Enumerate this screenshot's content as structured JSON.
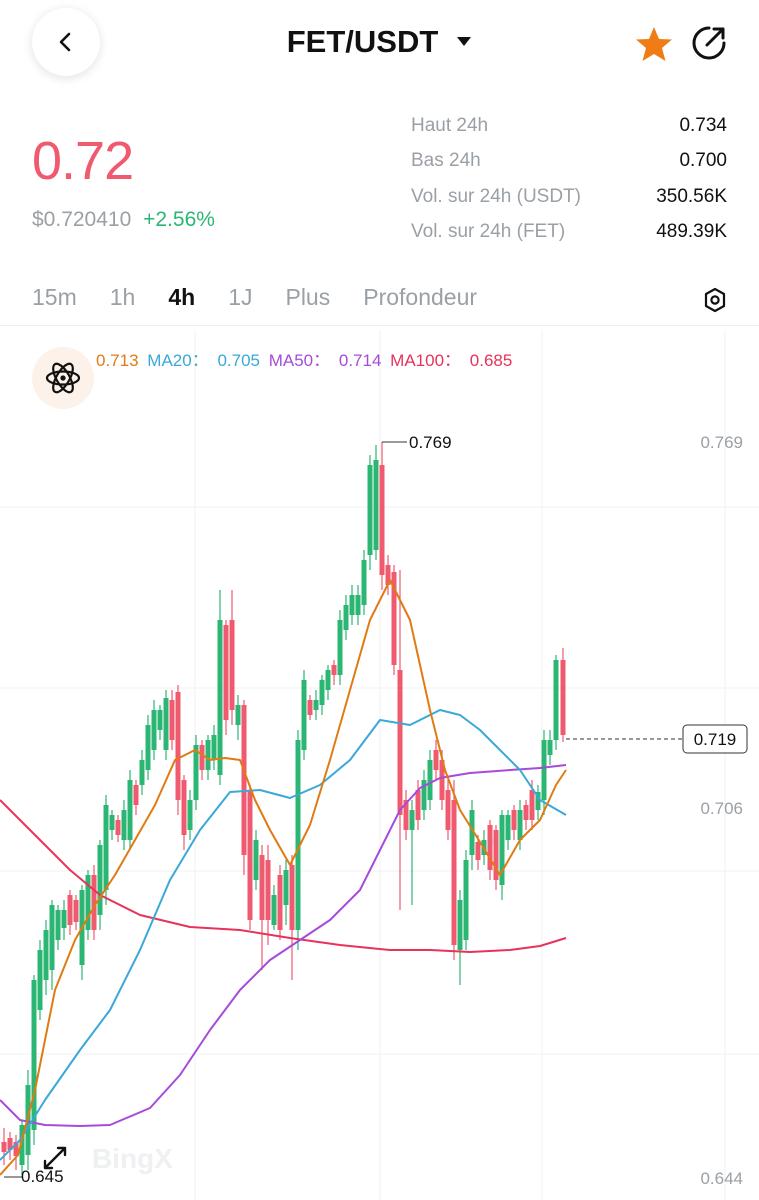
{
  "header": {
    "pair": "FET/USDT"
  },
  "ticker": {
    "last_price": "0.72",
    "usd_price": "$0.720410",
    "change": "+2.56%"
  },
  "stats": [
    {
      "label": "Haut 24h",
      "value": "0.734"
    },
    {
      "label": "Bas 24h",
      "value": "0.700"
    },
    {
      "label": "Vol. sur 24h (USDT)",
      "value": "350.56K"
    },
    {
      "label": "Vol. sur 24h (FET)",
      "value": "489.39K"
    }
  ],
  "tabs": [
    "15m",
    "1h",
    "4h",
    "1J",
    "Plus",
    "Profondeur"
  ],
  "active_tab": "4h",
  "ma_legend": [
    {
      "text": "0.713",
      "color": "#e07b13"
    },
    {
      "text": "MA20：",
      "color": "#3aa8d8"
    },
    {
      "text": "0.705",
      "color": "#3aa8d8"
    },
    {
      "text": "MA50：",
      "color": "#a64bd9"
    },
    {
      "text": "0.714",
      "color": "#a64bd9"
    },
    {
      "text": "MA100：",
      "color": "#e8325a"
    },
    {
      "text": "0.685",
      "color": "#e8325a"
    }
  ],
  "colors": {
    "up": "#2bb673",
    "down": "#ef5a6f",
    "accent": "#ef7c15"
  },
  "chart_data": {
    "type": "candlestick",
    "y_axis_labels": [
      "0.769",
      "0.706",
      "0.644"
    ],
    "high_label": "0.769",
    "low_label": "0.645",
    "current_price_label": "0.719",
    "ylim": [
      0.644,
      0.769
    ],
    "watermark": "BingX"
  }
}
